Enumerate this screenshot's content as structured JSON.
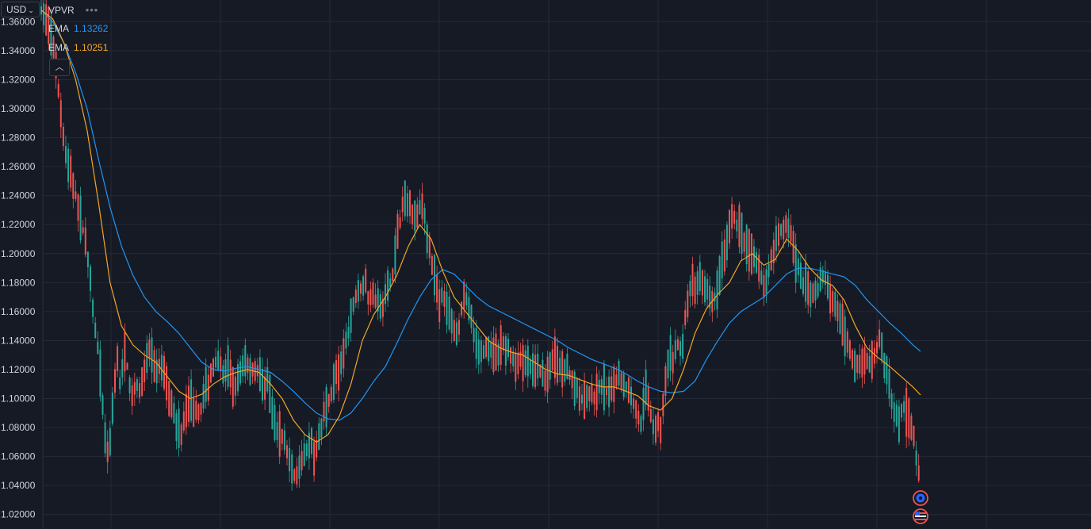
{
  "currency_selector": {
    "label": "USD"
  },
  "legend": {
    "vpvr": {
      "label": "VPVR"
    },
    "ema_fast": {
      "label": "EMA",
      "value": "1.13262",
      "color": "#2196f3"
    },
    "ema_slow": {
      "label": "EMA",
      "value": "1.10251",
      "color": "#f5a623"
    }
  },
  "colors": {
    "background": "#161a25",
    "grid": "#242938",
    "up": "#26a69a",
    "down": "#ef5350",
    "text": "#d1d4dc"
  },
  "icons": [
    "chevron-down-icon",
    "more-dots-icon",
    "collapse-up-icon",
    "crypto-event-icon",
    "us-flag-icon"
  ],
  "chart_data": {
    "type": "candlestick",
    "title": "",
    "ylim": [
      1.01,
      1.375
    ],
    "y_ticks": [
      "1.36000",
      "1.34000",
      "1.32000",
      "1.30000",
      "1.28000",
      "1.26000",
      "1.24000",
      "1.22000",
      "1.20000",
      "1.18000",
      "1.16000",
      "1.14000",
      "1.12000",
      "1.10000",
      "1.08000",
      "1.06000",
      "1.04000",
      "1.02000"
    ],
    "y_tick_values": [
      1.36,
      1.34,
      1.32,
      1.3,
      1.28,
      1.26,
      1.24,
      1.22,
      1.2,
      1.18,
      1.16,
      1.14,
      1.12,
      1.1,
      1.08,
      1.06,
      1.04,
      1.02
    ],
    "series": [
      {
        "name": "EMA",
        "kind": "ema_fast",
        "color": "#2196f3"
      },
      {
        "name": "EMA",
        "kind": "ema_slow",
        "color": "#f5a623"
      }
    ],
    "price_path": [
      [
        0,
        1.368
      ],
      [
        6,
        1.364
      ],
      [
        12,
        1.352
      ],
      [
        18,
        1.335
      ],
      [
        24,
        1.305
      ],
      [
        30,
        1.275
      ],
      [
        38,
        1.255
      ],
      [
        46,
        1.238
      ],
      [
        54,
        1.218
      ],
      [
        60,
        1.2
      ],
      [
        64,
        1.18
      ],
      [
        70,
        1.15
      ],
      [
        76,
        1.125
      ],
      [
        80,
        1.1
      ],
      [
        84,
        1.068
      ],
      [
        88,
        1.062
      ],
      [
        92,
        1.085
      ],
      [
        96,
        1.11
      ],
      [
        100,
        1.125
      ],
      [
        104,
        1.105
      ],
      [
        108,
        1.135
      ],
      [
        114,
        1.118
      ],
      [
        118,
        1.098
      ],
      [
        124,
        1.112
      ],
      [
        130,
        1.105
      ],
      [
        136,
        1.125
      ],
      [
        142,
        1.135
      ],
      [
        150,
        1.118
      ],
      [
        158,
        1.122
      ],
      [
        164,
        1.11
      ],
      [
        170,
        1.098
      ],
      [
        176,
        1.085
      ],
      [
        182,
        1.075
      ],
      [
        188,
        1.088
      ],
      [
        196,
        1.098
      ],
      [
        202,
        1.092
      ],
      [
        208,
        1.09
      ],
      [
        214,
        1.108
      ],
      [
        220,
        1.112
      ],
      [
        226,
        1.125
      ],
      [
        232,
        1.13
      ],
      [
        238,
        1.118
      ],
      [
        244,
        1.122
      ],
      [
        250,
        1.108
      ],
      [
        256,
        1.11
      ],
      [
        262,
        1.122
      ],
      [
        268,
        1.125
      ],
      [
        274,
        1.118
      ],
      [
        280,
        1.122
      ],
      [
        286,
        1.115
      ],
      [
        292,
        1.108
      ],
      [
        296,
        1.112
      ],
      [
        302,
        1.09
      ],
      [
        308,
        1.08
      ],
      [
        314,
        1.075
      ],
      [
        320,
        1.068
      ],
      [
        324,
        1.058
      ],
      [
        330,
        1.05
      ],
      [
        336,
        1.045
      ],
      [
        340,
        1.055
      ],
      [
        346,
        1.065
      ],
      [
        352,
        1.072
      ],
      [
        356,
        1.06
      ],
      [
        362,
        1.068
      ],
      [
        368,
        1.085
      ],
      [
        374,
        1.095
      ],
      [
        380,
        1.105
      ],
      [
        386,
        1.118
      ],
      [
        392,
        1.125
      ],
      [
        396,
        1.132
      ],
      [
        402,
        1.148
      ],
      [
        406,
        1.16
      ],
      [
        412,
        1.17
      ],
      [
        418,
        1.175
      ],
      [
        424,
        1.182
      ],
      [
        428,
        1.168
      ],
      [
        434,
        1.172
      ],
      [
        440,
        1.165
      ],
      [
        446,
        1.16
      ],
      [
        452,
        1.175
      ],
      [
        458,
        1.18
      ],
      [
        462,
        1.195
      ],
      [
        466,
        1.212
      ],
      [
        470,
        1.225
      ],
      [
        474,
        1.24
      ],
      [
        480,
        1.232
      ],
      [
        486,
        1.228
      ],
      [
        490,
        1.222
      ],
      [
        496,
        1.232
      ],
      [
        502,
        1.225
      ],
      [
        506,
        1.21
      ],
      [
        510,
        1.195
      ],
      [
        516,
        1.18
      ],
      [
        520,
        1.168
      ],
      [
        526,
        1.172
      ],
      [
        532,
        1.162
      ],
      [
        538,
        1.15
      ],
      [
        544,
        1.14
      ],
      [
        550,
        1.165
      ],
      [
        556,
        1.17
      ],
      [
        562,
        1.155
      ],
      [
        568,
        1.14
      ],
      [
        574,
        1.13
      ],
      [
        580,
        1.132
      ],
      [
        586,
        1.138
      ],
      [
        592,
        1.128
      ],
      [
        598,
        1.13
      ],
      [
        604,
        1.14
      ],
      [
        610,
        1.135
      ],
      [
        616,
        1.128
      ],
      [
        622,
        1.122
      ],
      [
        628,
        1.13
      ],
      [
        634,
        1.125
      ],
      [
        640,
        1.122
      ],
      [
        646,
        1.118
      ],
      [
        652,
        1.12
      ],
      [
        658,
        1.112
      ],
      [
        664,
        1.115
      ],
      [
        670,
        1.13
      ],
      [
        676,
        1.125
      ],
      [
        682,
        1.12
      ],
      [
        688,
        1.118
      ],
      [
        694,
        1.112
      ],
      [
        700,
        1.108
      ],
      [
        706,
        1.1
      ],
      [
        712,
        1.098
      ],
      [
        718,
        1.105
      ],
      [
        724,
        1.1
      ],
      [
        730,
        1.11
      ],
      [
        736,
        1.108
      ],
      [
        742,
        1.102
      ],
      [
        748,
        1.11
      ],
      [
        754,
        1.115
      ],
      [
        760,
        1.11
      ],
      [
        766,
        1.108
      ],
      [
        772,
        1.1
      ],
      [
        778,
        1.092
      ],
      [
        782,
        1.085
      ],
      [
        786,
        1.08
      ],
      [
        790,
        1.11
      ],
      [
        794,
        1.1
      ],
      [
        798,
        1.085
      ],
      [
        802,
        1.078
      ],
      [
        806,
        1.085
      ],
      [
        810,
        1.082
      ],
      [
        814,
        1.098
      ],
      [
        818,
        1.12
      ],
      [
        822,
        1.128
      ],
      [
        826,
        1.122
      ],
      [
        830,
        1.135
      ],
      [
        834,
        1.14
      ],
      [
        838,
        1.13
      ],
      [
        842,
        1.155
      ],
      [
        846,
        1.17
      ],
      [
        850,
        1.18
      ],
      [
        856,
        1.175
      ],
      [
        862,
        1.185
      ],
      [
        868,
        1.178
      ],
      [
        874,
        1.172
      ],
      [
        880,
        1.168
      ],
      [
        886,
        1.18
      ],
      [
        892,
        1.195
      ],
      [
        898,
        1.212
      ],
      [
        904,
        1.225
      ],
      [
        910,
        1.22
      ],
      [
        916,
        1.215
      ],
      [
        922,
        1.208
      ],
      [
        928,
        1.2
      ],
      [
        934,
        1.195
      ],
      [
        940,
        1.185
      ],
      [
        946,
        1.178
      ],
      [
        952,
        1.19
      ],
      [
        958,
        1.205
      ],
      [
        964,
        1.212
      ],
      [
        970,
        1.218
      ],
      [
        976,
        1.222
      ],
      [
        982,
        1.21
      ],
      [
        988,
        1.192
      ],
      [
        994,
        1.182
      ],
      [
        1000,
        1.178
      ],
      [
        1006,
        1.175
      ],
      [
        1012,
        1.172
      ],
      [
        1018,
        1.18
      ],
      [
        1024,
        1.185
      ],
      [
        1030,
        1.175
      ],
      [
        1036,
        1.168
      ],
      [
        1042,
        1.158
      ],
      [
        1048,
        1.15
      ],
      [
        1054,
        1.14
      ],
      [
        1060,
        1.13
      ],
      [
        1066,
        1.122
      ],
      [
        1072,
        1.125
      ],
      [
        1078,
        1.128
      ],
      [
        1084,
        1.122
      ],
      [
        1090,
        1.13
      ],
      [
        1096,
        1.14
      ],
      [
        1100,
        1.132
      ],
      [
        1106,
        1.12
      ],
      [
        1110,
        1.105
      ],
      [
        1116,
        1.092
      ],
      [
        1122,
        1.085
      ],
      [
        1128,
        1.095
      ],
      [
        1134,
        1.088
      ],
      [
        1140,
        1.08
      ],
      [
        1144,
        1.06
      ],
      [
        1148,
        1.05
      ],
      [
        1150,
        1.052
      ]
    ],
    "ema_fast_path": [
      [
        0,
        1.368
      ],
      [
        15,
        1.36
      ],
      [
        30,
        1.345
      ],
      [
        45,
        1.325
      ],
      [
        60,
        1.3
      ],
      [
        75,
        1.265
      ],
      [
        90,
        1.232
      ],
      [
        105,
        1.205
      ],
      [
        120,
        1.185
      ],
      [
        135,
        1.17
      ],
      [
        150,
        1.16
      ],
      [
        165,
        1.153
      ],
      [
        180,
        1.145
      ],
      [
        195,
        1.135
      ],
      [
        210,
        1.125
      ],
      [
        225,
        1.12
      ],
      [
        240,
        1.119
      ],
      [
        255,
        1.121
      ],
      [
        270,
        1.122
      ],
      [
        285,
        1.12
      ],
      [
        300,
        1.118
      ],
      [
        315,
        1.112
      ],
      [
        330,
        1.105
      ],
      [
        345,
        1.097
      ],
      [
        360,
        1.09
      ],
      [
        375,
        1.086
      ],
      [
        390,
        1.085
      ],
      [
        405,
        1.09
      ],
      [
        420,
        1.1
      ],
      [
        435,
        1.112
      ],
      [
        450,
        1.122
      ],
      [
        465,
        1.138
      ],
      [
        480,
        1.155
      ],
      [
        495,
        1.17
      ],
      [
        510,
        1.182
      ],
      [
        525,
        1.189
      ],
      [
        540,
        1.186
      ],
      [
        555,
        1.178
      ],
      [
        570,
        1.17
      ],
      [
        585,
        1.164
      ],
      [
        600,
        1.16
      ],
      [
        615,
        1.156
      ],
      [
        630,
        1.152
      ],
      [
        645,
        1.148
      ],
      [
        660,
        1.144
      ],
      [
        675,
        1.14
      ],
      [
        690,
        1.135
      ],
      [
        705,
        1.131
      ],
      [
        720,
        1.127
      ],
      [
        735,
        1.124
      ],
      [
        750,
        1.121
      ],
      [
        765,
        1.117
      ],
      [
        780,
        1.112
      ],
      [
        795,
        1.108
      ],
      [
        810,
        1.105
      ],
      [
        825,
        1.104
      ],
      [
        840,
        1.105
      ],
      [
        855,
        1.112
      ],
      [
        870,
        1.127
      ],
      [
        885,
        1.14
      ],
      [
        900,
        1.152
      ],
      [
        915,
        1.16
      ],
      [
        930,
        1.165
      ],
      [
        945,
        1.17
      ],
      [
        960,
        1.178
      ],
      [
        975,
        1.186
      ],
      [
        990,
        1.19
      ],
      [
        1005,
        1.19
      ],
      [
        1020,
        1.188
      ],
      [
        1035,
        1.186
      ],
      [
        1050,
        1.184
      ],
      [
        1065,
        1.178
      ],
      [
        1080,
        1.168
      ],
      [
        1095,
        1.16
      ],
      [
        1110,
        1.152
      ],
      [
        1125,
        1.145
      ],
      [
        1140,
        1.137
      ],
      [
        1150,
        1.1326
      ]
    ],
    "ema_slow_path": [
      [
        0,
        1.368
      ],
      [
        15,
        1.362
      ],
      [
        30,
        1.345
      ],
      [
        45,
        1.32
      ],
      [
        60,
        1.285
      ],
      [
        75,
        1.235
      ],
      [
        90,
        1.18
      ],
      [
        105,
        1.15
      ],
      [
        120,
        1.137
      ],
      [
        135,
        1.13
      ],
      [
        150,
        1.125
      ],
      [
        165,
        1.115
      ],
      [
        180,
        1.105
      ],
      [
        195,
        1.1
      ],
      [
        210,
        1.103
      ],
      [
        225,
        1.11
      ],
      [
        240,
        1.115
      ],
      [
        255,
        1.118
      ],
      [
        270,
        1.12
      ],
      [
        285,
        1.118
      ],
      [
        300,
        1.11
      ],
      [
        315,
        1.1
      ],
      [
        330,
        1.085
      ],
      [
        345,
        1.075
      ],
      [
        360,
        1.07
      ],
      [
        375,
        1.075
      ],
      [
        390,
        1.088
      ],
      [
        405,
        1.11
      ],
      [
        420,
        1.14
      ],
      [
        435,
        1.158
      ],
      [
        450,
        1.17
      ],
      [
        465,
        1.185
      ],
      [
        480,
        1.205
      ],
      [
        495,
        1.22
      ],
      [
        510,
        1.21
      ],
      [
        525,
        1.188
      ],
      [
        540,
        1.17
      ],
      [
        555,
        1.16
      ],
      [
        570,
        1.15
      ],
      [
        585,
        1.14
      ],
      [
        600,
        1.135
      ],
      [
        615,
        1.132
      ],
      [
        630,
        1.13
      ],
      [
        645,
        1.125
      ],
      [
        660,
        1.12
      ],
      [
        675,
        1.117
      ],
      [
        690,
        1.116
      ],
      [
        705,
        1.113
      ],
      [
        720,
        1.11
      ],
      [
        735,
        1.108
      ],
      [
        750,
        1.108
      ],
      [
        765,
        1.105
      ],
      [
        780,
        1.102
      ],
      [
        795,
        1.095
      ],
      [
        810,
        1.092
      ],
      [
        825,
        1.1
      ],
      [
        840,
        1.12
      ],
      [
        855,
        1.145
      ],
      [
        870,
        1.162
      ],
      [
        885,
        1.172
      ],
      [
        900,
        1.18
      ],
      [
        915,
        1.195
      ],
      [
        930,
        1.2
      ],
      [
        945,
        1.192
      ],
      [
        960,
        1.196
      ],
      [
        975,
        1.21
      ],
      [
        990,
        1.202
      ],
      [
        1005,
        1.19
      ],
      [
        1020,
        1.182
      ],
      [
        1035,
        1.178
      ],
      [
        1050,
        1.168
      ],
      [
        1065,
        1.15
      ],
      [
        1080,
        1.135
      ],
      [
        1095,
        1.128
      ],
      [
        1110,
        1.122
      ],
      [
        1125,
        1.115
      ],
      [
        1140,
        1.108
      ],
      [
        1150,
        1.1025
      ]
    ]
  }
}
